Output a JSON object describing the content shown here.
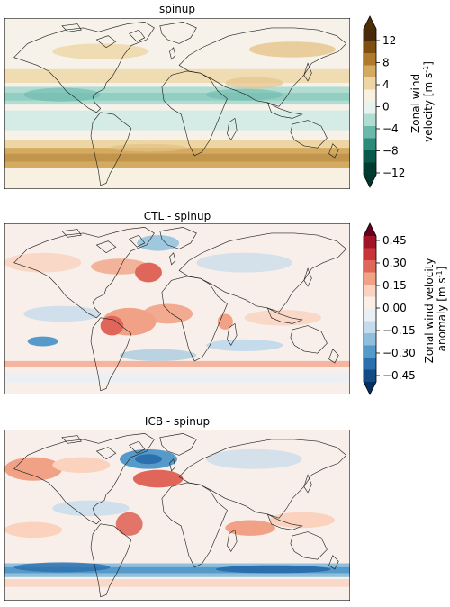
{
  "panels": [
    {
      "title": "spinup",
      "colorbar": {
        "label_line1": "Zonal wind",
        "label_line2": "velocity [m s",
        "label_sup": "-1",
        "label_end": "]",
        "ticks": [
          "12",
          "8",
          "4",
          "0",
          "−4",
          "−8",
          "−12"
        ],
        "colors": [
          "#4a2a0c",
          "#7f4f10",
          "#b07a2d",
          "#d3aa60",
          "#eed6a4",
          "#f8f1e2",
          "#e8f3f0",
          "#b0dcd2",
          "#6ab9ab",
          "#2c8b7c",
          "#08594b",
          "#003b30"
        ],
        "pos_color": "#4f2c08",
        "neg_color": "#00362c"
      }
    },
    {
      "title": "CTL - spinup",
      "colorbar": {
        "label_line1": "Zonal wind velocity",
        "label_line2": "anomaly [m s",
        "label_sup": "-1",
        "label_end": "]",
        "ticks": [
          "0.45",
          "0.30",
          "0.15",
          "0.00",
          "−0.15",
          "−0.30",
          "−0.45"
        ],
        "colors": [
          "#a11428",
          "#c8343a",
          "#e0665a",
          "#f1a286",
          "#fad2be",
          "#fbeee6",
          "#e8f0f6",
          "#c4dbeb",
          "#8fbfdc",
          "#559ac8",
          "#2a6fae",
          "#134b87"
        ],
        "pos_color": "#67001f",
        "neg_color": "#053061"
      }
    },
    {
      "title": "ICB - spinup",
      "colorbar": null
    }
  ]
}
